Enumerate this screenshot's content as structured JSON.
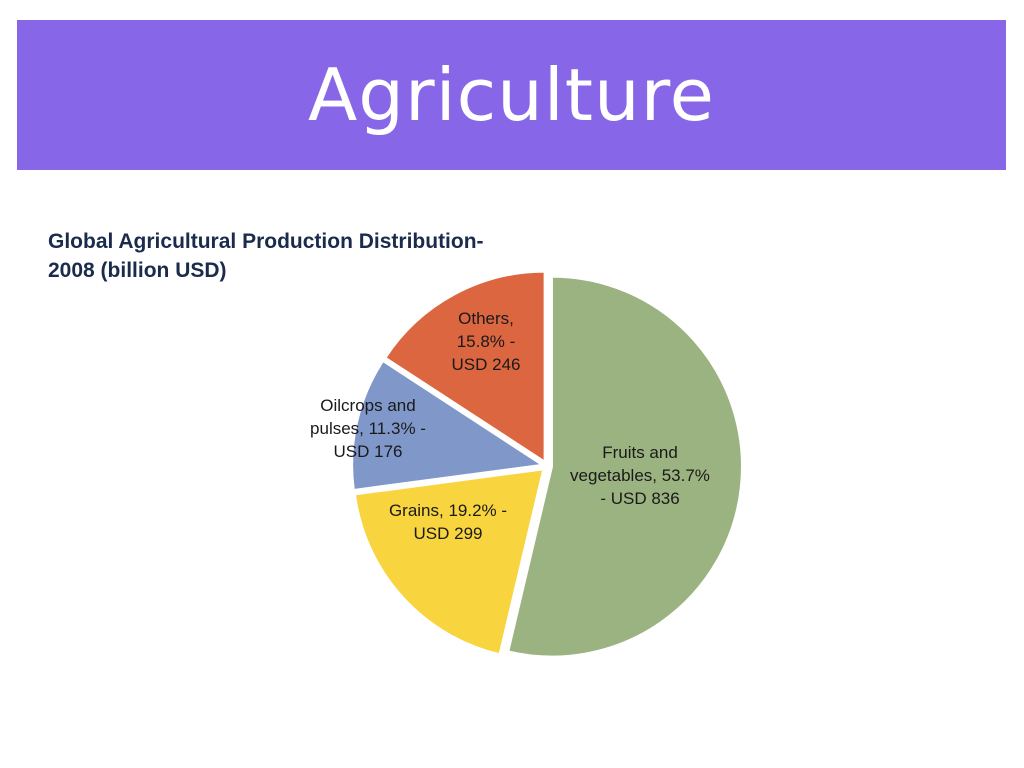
{
  "slide": {
    "title": "Agriculture"
  },
  "colors": {
    "banner": "#8767e8",
    "banner_text": "#ffffff"
  },
  "chart_data": {
    "type": "pie",
    "title_lines": [
      "Global Agricultural  Production Distribution-",
      "2008 (billion USD)"
    ],
    "unit": "billion USD",
    "year": 2008,
    "slices": [
      {
        "name": "Fruits and vegetables",
        "percent": 53.7,
        "value": 836,
        "color": "#9bb380",
        "label_lines": [
          "Fruits and",
          "vegetables,  53.7%",
          "- USD 836"
        ]
      },
      {
        "name": "Grains",
        "percent": 19.2,
        "value": 299,
        "color": "#f8d43e",
        "label_lines": [
          "Grains,  19.2% -",
          "USD 299"
        ]
      },
      {
        "name": "Oilcrops and pulses",
        "percent": 11.3,
        "value": 176,
        "color": "#7f97c9",
        "label_lines": [
          "Oilcrops and",
          "pulses,  11.3% -",
          "USD 176"
        ]
      },
      {
        "name": "Others",
        "percent": 15.8,
        "value": 246,
        "color": "#db6640",
        "label_lines": [
          "Others,",
          "15.8% -",
          "USD 246"
        ]
      }
    ],
    "start": "12 o'clock",
    "direction": "clockwise",
    "legend": "none",
    "exploded": true
  }
}
